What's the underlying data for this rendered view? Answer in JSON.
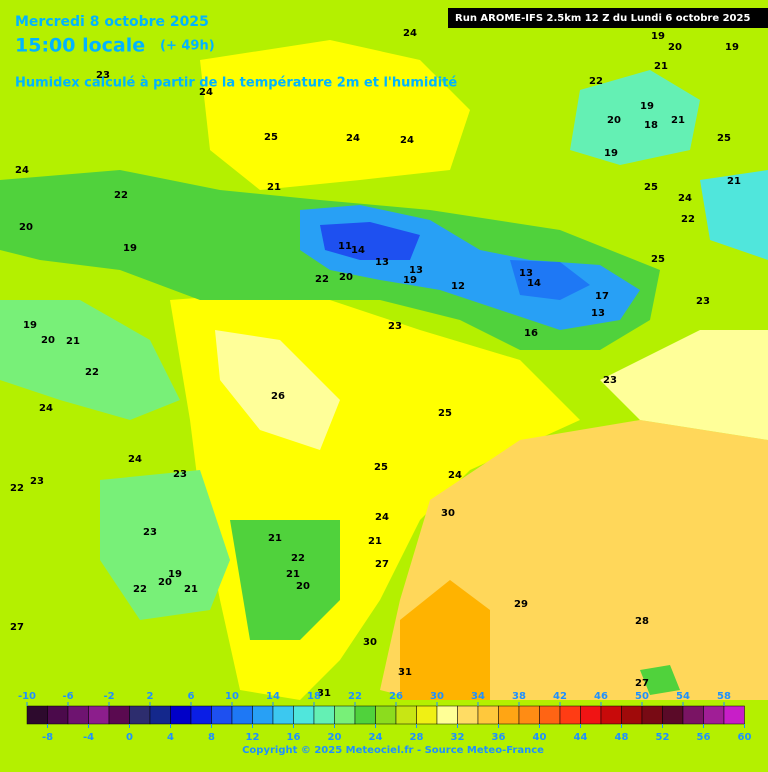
{
  "header": {
    "date": "Mercredi 8 octobre 2025",
    "time": "15:00 locale",
    "lead": "(+ 49h)",
    "description": "Humidex calculé à partir de la température 2m et l'humidité",
    "run": "Run AROME-IFS 2.5km 12 Z du Lundi 6 octobre 2025"
  },
  "colorbar": {
    "ticks": [
      -10,
      -8,
      -6,
      -4,
      -2,
      0,
      2,
      4,
      6,
      8,
      10,
      12,
      14,
      16,
      18,
      20,
      22,
      24,
      26,
      28,
      30,
      32,
      34,
      36,
      38,
      40,
      42,
      44,
      46,
      48,
      50,
      52,
      54,
      56,
      58,
      60
    ],
    "colors": [
      "#2d0a2d",
      "#4b0a4b",
      "#6e1470",
      "#8c1e8c",
      "#5a0a50",
      "#2d2d6e",
      "#14288c",
      "#0000c8",
      "#0a1ee6",
      "#1e50f0",
      "#1e78f5",
      "#28a0f5",
      "#3cc8f0",
      "#50e6dc",
      "#64f0b4",
      "#78f078",
      "#50d23c",
      "#8cdc1e",
      "#c8e614",
      "#f0f014",
      "#ffff96",
      "#ffdc64",
      "#ffc83c",
      "#ffa514",
      "#ff8c14",
      "#ff6414",
      "#ff3c14",
      "#f01414",
      "#c80a0a",
      "#a00a0a",
      "#780a14",
      "#5a0a28",
      "#7a1464",
      "#a01e96",
      "#c81ec8",
      "#f03cf0",
      "#ff78ff"
    ]
  },
  "contour_labels": [
    24,
    19,
    20,
    19,
    23,
    24,
    22,
    21,
    19,
    20,
    18,
    21,
    25,
    25,
    24,
    24,
    19,
    21,
    25,
    24,
    21,
    24,
    22,
    20,
    19,
    22,
    11,
    14,
    13,
    13,
    13,
    14,
    12,
    19,
    22,
    20,
    25,
    17,
    13,
    23,
    16,
    23,
    19,
    20,
    21,
    22,
    23,
    24,
    26,
    25,
    24,
    23,
    25,
    24,
    22,
    23,
    30,
    24,
    23,
    21,
    21,
    22,
    27,
    20,
    19,
    21,
    22,
    21,
    20,
    27,
    29,
    28,
    30,
    31,
    31,
    27
  ],
  "copyright": "Copyright © 2025 Meteociel.fr - Source Meteo-France"
}
